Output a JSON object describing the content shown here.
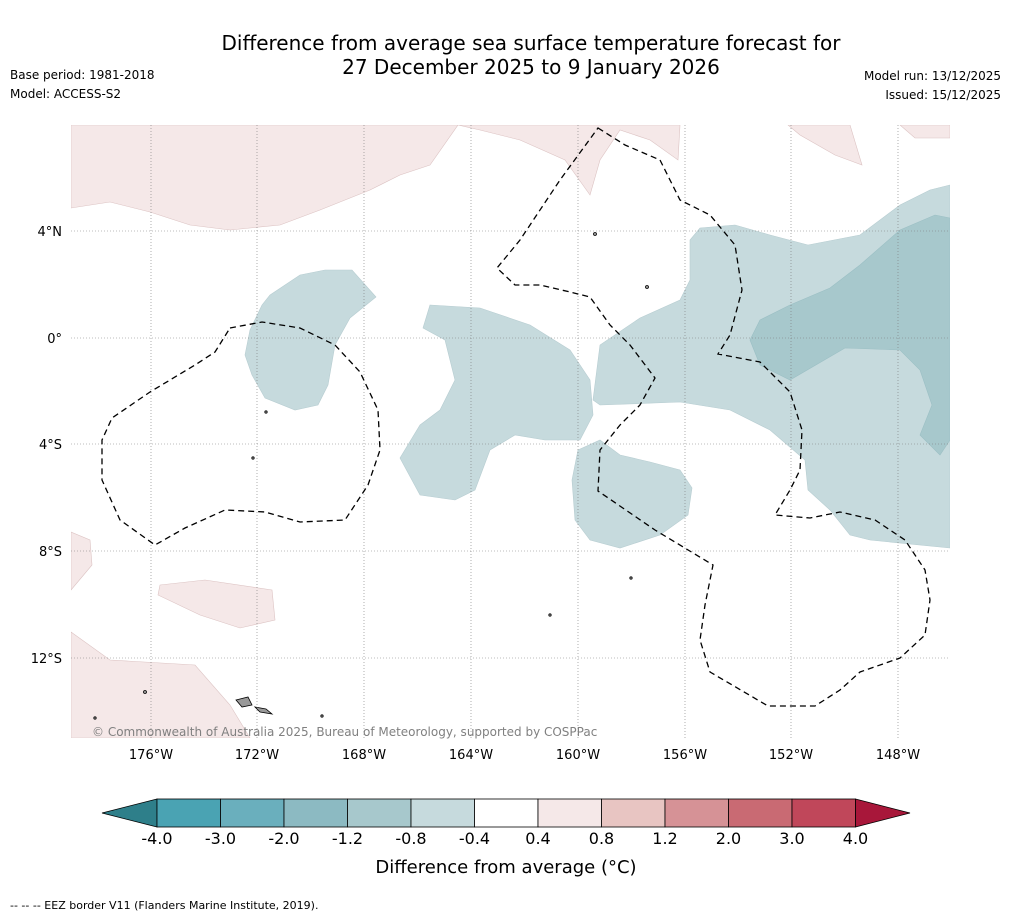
{
  "title": {
    "line1": "Difference from average sea surface temperature forecast for",
    "line2": "27 December 2025 to 9 January 2026"
  },
  "meta": {
    "base_period": "Base period: 1981-2018",
    "model": "Model: ACCESS-S2",
    "model_run": "Model run: 13/12/2025",
    "issued": "Issued: 15/12/2025"
  },
  "map": {
    "lon_ticks": [
      "176°W",
      "172°W",
      "168°W",
      "164°W",
      "160°W",
      "156°W",
      "152°W",
      "148°W"
    ],
    "lat_ticks": [
      "4°N",
      "0°",
      "4°S",
      "8°S",
      "12°S"
    ],
    "copyright": "© Commonwealth of Australia 2025, Bureau of Meteorology, supported by COSPPac"
  },
  "colorbar": {
    "labels": [
      "-4.0",
      "-3.0",
      "-2.0",
      "-1.2",
      "-0.8",
      "-0.4",
      "0.4",
      "0.8",
      "1.2",
      "2.0",
      "3.0",
      "4.0"
    ],
    "colors": [
      "#4aa3b3",
      "#6aafbd",
      "#8cbac2",
      "#a7c8cc",
      "#c6dadd",
      "#ffffff",
      "#f5e8e8",
      "#e8c5c2",
      "#d69296",
      "#c96a73",
      "#c0475a"
    ],
    "under_color": "#2e7f8a",
    "over_color": "#a8173a",
    "title": "Difference from average (°C)"
  },
  "footer": {
    "legend": "-- -- -- EEZ border V11 (Flanders Marine Institute, 2019)."
  }
}
